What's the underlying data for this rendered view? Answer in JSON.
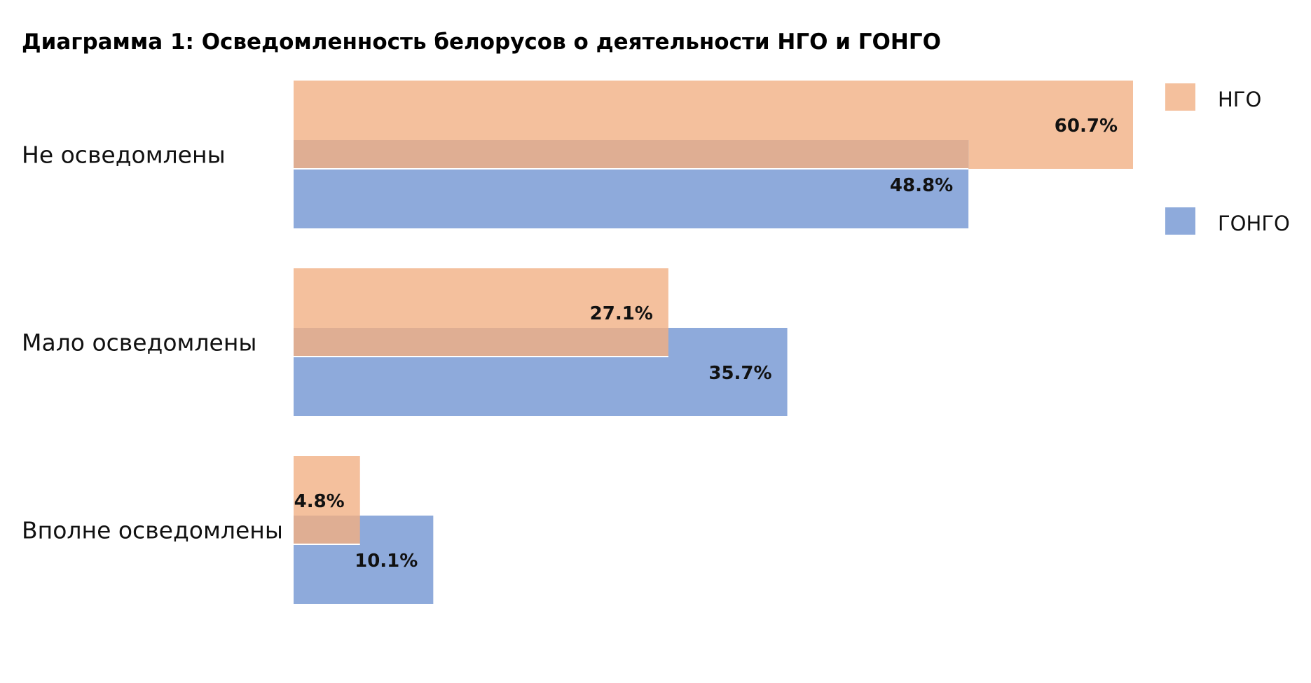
{
  "chart_data": {
    "type": "bar",
    "orientation": "horizontal",
    "title": "Диаграмма 1: Осведомленность белорусов о деятельности НГО и ГОНГО",
    "xlabel": "",
    "ylabel": "",
    "grid": false,
    "legend_position": "right",
    "unit": "%",
    "xlim": [
      0,
      60.7
    ],
    "categories": [
      "Не осведомлены",
      "Мало осведомлены",
      "Вполне осведомлены"
    ],
    "series": [
      {
        "name": "НГО",
        "color": "#f4c09d",
        "values": [
          60.7,
          27.1,
          4.8
        ],
        "labels": [
          "60.7%",
          "27.1%",
          "4.8%"
        ]
      },
      {
        "name": "ГОНГО",
        "color": "#8eaadb",
        "values": [
          48.8,
          35.7,
          10.1
        ],
        "labels": [
          "48.8%",
          "35.7%",
          "10.1%"
        ]
      }
    ],
    "overlap_color": "#dfae93"
  }
}
